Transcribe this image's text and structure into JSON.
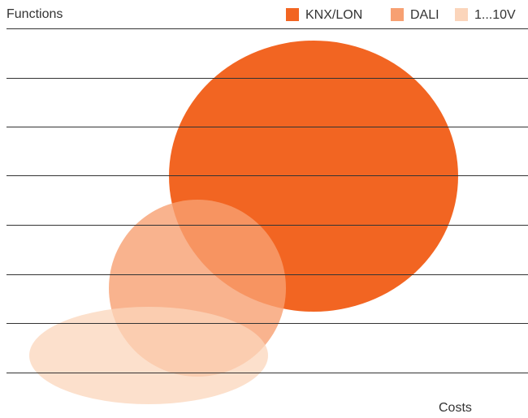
{
  "axis_labels": {
    "y": "Functions",
    "x": "Costs"
  },
  "legend": [
    {
      "name": "KNX/LON",
      "color": "#f26522"
    },
    {
      "name": "DALI",
      "color": "#f7a072"
    },
    {
      "name": "1...10V",
      "color": "#fbd5bb"
    }
  ]
}
